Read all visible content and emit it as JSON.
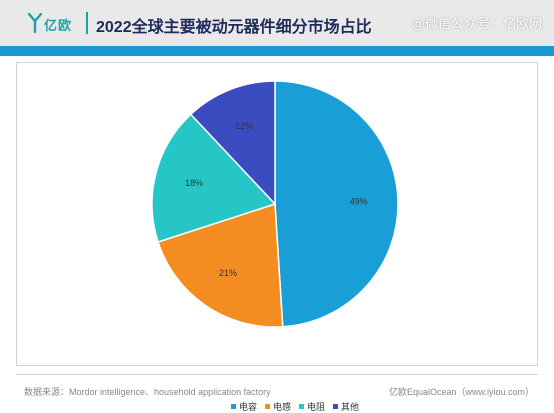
{
  "header": {
    "logo_text": "亿欧",
    "title": "2022全球主要被动元器件细分市场占比",
    "watermark": "@微信公众号：亿欧网"
  },
  "chart_data": {
    "type": "pie",
    "title": "2022全球主要被动元器件细分市场占比",
    "slices": [
      {
        "name": "电容",
        "value": 49,
        "label": "49%",
        "color": "#1a9ed6"
      },
      {
        "name": "电感",
        "value": 21,
        "label": "21%",
        "color": "#f48d21"
      },
      {
        "name": "电阻",
        "value": 18,
        "label": "18%",
        "color": "#26c6c6"
      },
      {
        "name": "其他",
        "value": 12,
        "label": "12%",
        "color": "#3b4cc0"
      }
    ],
    "start": "12 o'clock",
    "direction": "clockwise",
    "legend_position": "bottom"
  },
  "footer": {
    "source": "数据来源：Mordor intelligence、household application factory",
    "credit": "亿欧EqualOcean（www.iyiou.com）"
  }
}
